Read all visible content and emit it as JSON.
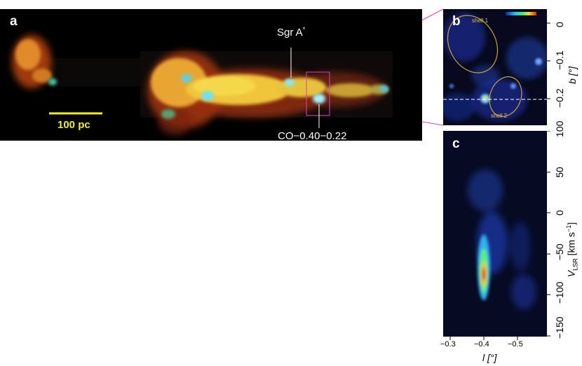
{
  "panel_a": {
    "letter": "a",
    "scale_bar_label": "100 pc",
    "sgr_label": "Sgr A",
    "sgr_sup": "*",
    "co_label": "CO−0.40−0.22"
  },
  "panel_b": {
    "letter": "b",
    "shell1_label": "shell 1",
    "shell2_label": "shell 2",
    "y_axis_label": "b [°]",
    "y_ticks": [
      "0",
      "−0.1",
      "−0.2"
    ]
  },
  "panel_c": {
    "letter": "c",
    "y_axis_label_main": "V",
    "y_axis_label_sub": "LSR",
    "y_axis_unit": "[km s",
    "y_axis_unit_sup": "−1",
    "y_axis_unit_end": "]",
    "y_ticks": [
      "100",
      "50",
      "0",
      "−50",
      "−100",
      "−150"
    ],
    "x_ticks": [
      "−0.3",
      "−0.4",
      "−0.5"
    ],
    "x_axis_label": "l [°]"
  },
  "colors": {
    "scale_bar": "#f2ee24",
    "shell_outline": "#c8a040",
    "connector": "#e040c0"
  }
}
